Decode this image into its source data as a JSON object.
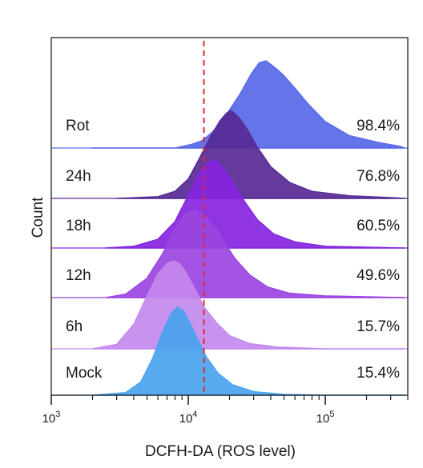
{
  "chart_data": {
    "type": "area",
    "subtype": "stacked histogram overlay (flow cytometry)",
    "xlabel": "DCFH-DA (ROS level)",
    "ylabel": "Count",
    "x_scale": "log",
    "xlim": [
      1000,
      400000
    ],
    "x_ticks": [
      {
        "value": 1000,
        "base": "10",
        "exp": "3"
      },
      {
        "value": 10000,
        "base": "10",
        "exp": "4"
      },
      {
        "value": 100000,
        "base": "10",
        "exp": "5"
      }
    ],
    "threshold": {
      "value": 13000,
      "style": "dashed",
      "color": "#e0282d"
    },
    "series": [
      {
        "name": "Rot",
        "percent": "98.4%",
        "color": "#5968e8",
        "x": [
          2000,
          8000,
          10500,
          12500,
          15000,
          19000,
          24000,
          29000,
          33000,
          37000,
          40000,
          44000,
          50000,
          60000,
          75000,
          100000,
          150000,
          250000,
          350000,
          380000
        ],
        "y": [
          0,
          0,
          0.04,
          0.08,
          0.18,
          0.38,
          0.62,
          0.85,
          0.97,
          0.99,
          0.95,
          0.9,
          0.82,
          0.68,
          0.5,
          0.3,
          0.14,
          0.06,
          0.02,
          0.0
        ]
      },
      {
        "name": "24h",
        "percent": "76.8%",
        "color": "#572a95",
        "x": [
          3000,
          6000,
          8000,
          10000,
          12000,
          14500,
          17000,
          19000,
          20500,
          22000,
          24000,
          27000,
          32000,
          40000,
          55000,
          80000,
          150000,
          300000,
          380000
        ],
        "y": [
          0,
          0.02,
          0.08,
          0.22,
          0.45,
          0.7,
          0.88,
          0.97,
          1.0,
          0.96,
          0.9,
          0.78,
          0.58,
          0.36,
          0.18,
          0.08,
          0.03,
          0.01,
          0.0
        ]
      },
      {
        "name": "18h",
        "percent": "60.5%",
        "color": "#8525e0",
        "x": [
          2500,
          4000,
          6000,
          8000,
          10000,
          12000,
          14000,
          15500,
          17000,
          19000,
          22000,
          26000,
          32000,
          42000,
          60000,
          100000,
          200000,
          380000
        ],
        "y": [
          0,
          0.02,
          0.1,
          0.3,
          0.6,
          0.85,
          0.97,
          1.0,
          0.96,
          0.86,
          0.7,
          0.52,
          0.32,
          0.16,
          0.07,
          0.02,
          0.01,
          0.0
        ]
      },
      {
        "name": "12h",
        "percent": "49.6%",
        "color": "#9b45e0",
        "x": [
          2500,
          3500,
          5000,
          6500,
          8000,
          9500,
          11000,
          12500,
          14000,
          16000,
          18500,
          22000,
          28000,
          38000,
          55000,
          100000,
          200000,
          380000
        ],
        "y": [
          0,
          0.04,
          0.22,
          0.5,
          0.78,
          0.95,
          1.0,
          0.96,
          0.88,
          0.78,
          0.62,
          0.44,
          0.26,
          0.12,
          0.05,
          0.02,
          0.01,
          0.0
        ]
      },
      {
        "name": "6h",
        "percent": "15.7%",
        "color": "#c389ee",
        "x": [
          2000,
          3000,
          4000,
          5000,
          6000,
          7000,
          7800,
          8600,
          9500,
          11000,
          13000,
          16000,
          20000,
          28000,
          45000,
          100000,
          380000
        ],
        "y": [
          0,
          0.05,
          0.28,
          0.6,
          0.85,
          0.97,
          1.0,
          0.97,
          0.88,
          0.7,
          0.48,
          0.3,
          0.15,
          0.06,
          0.02,
          0.0,
          0.0
        ]
      },
      {
        "name": "Mock",
        "percent": "15.4%",
        "color": "#4aa3ee",
        "x": [
          2000,
          3500,
          4500,
          5500,
          6500,
          7500,
          8300,
          9200,
          10000,
          11500,
          13500,
          16500,
          21000,
          30000,
          50000,
          100000,
          380000
        ],
        "y": [
          0,
          0.03,
          0.15,
          0.42,
          0.72,
          0.93,
          1.0,
          0.96,
          0.86,
          0.66,
          0.44,
          0.25,
          0.12,
          0.04,
          0.01,
          0.0,
          0.0
        ]
      }
    ]
  }
}
